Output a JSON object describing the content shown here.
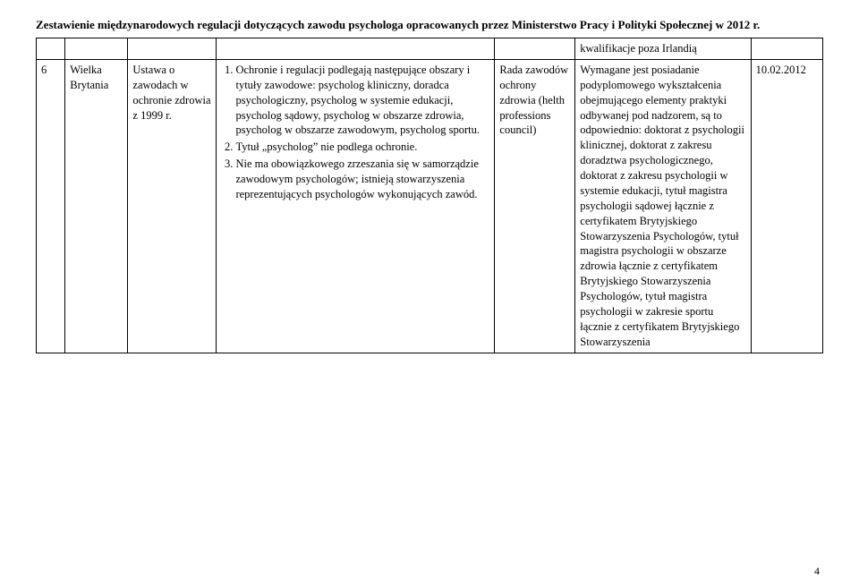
{
  "header": "Zestawienie międzynarodowych regulacji dotyczących zawodu psychologa opracowanych przez Ministerstwo Pracy i Polityki Społecznej w 2012 r.",
  "row_prev": {
    "note": "kwalifikacje poza Irlandią"
  },
  "row": {
    "num": "6",
    "country": "Wielka Brytania",
    "law": "Ustawa o zawodach w ochronie zdrowia  z 1999 r.",
    "desc_item1": "Ochronie i regulacji podlegają następujące obszary i tytuły zawodowe: psycholog kliniczny, doradca psychologiczny, psycholog w systemie edukacji, psycholog sądowy, psycholog w obszarze zdrowia, psycholog w obszarze zawodowym, psycholog sportu.",
    "desc_item2": "Tytuł „psycholog” nie podlega ochronie.",
    "desc_item3": "Nie ma obowiązkowego zrzeszania się w samorządzie zawodowym psychologów; istnieją stowarzyszenia reprezentujących psychologów wykonujących zawód.",
    "body": "Rada zawodów ochrony zdrowia (helth professions council)",
    "req": "Wymagane jest posiadanie podyplomowego wykształcenia obejmującego elementy praktyki odbywanej pod nadzorem, są to odpowiednio: doktorat z psychologii klinicznej, doktorat z  zakresu doradztwa psychologicznego, doktorat z zakresu psychologii w systemie edukacji, tytuł magistra psychologii sądowej łącznie z certyfikatem Brytyjskiego Stowarzyszenia Psychologów, tytuł magistra psychologii w obszarze zdrowia łącznie z certyfikatem Brytyjskiego Stowarzyszenia Psychologów, tytuł magistra psychologii w zakresie sportu łącznie z certyfikatem Brytyjskiego Stowarzyszenia",
    "date": "10.02.2012"
  },
  "page_number": "4"
}
